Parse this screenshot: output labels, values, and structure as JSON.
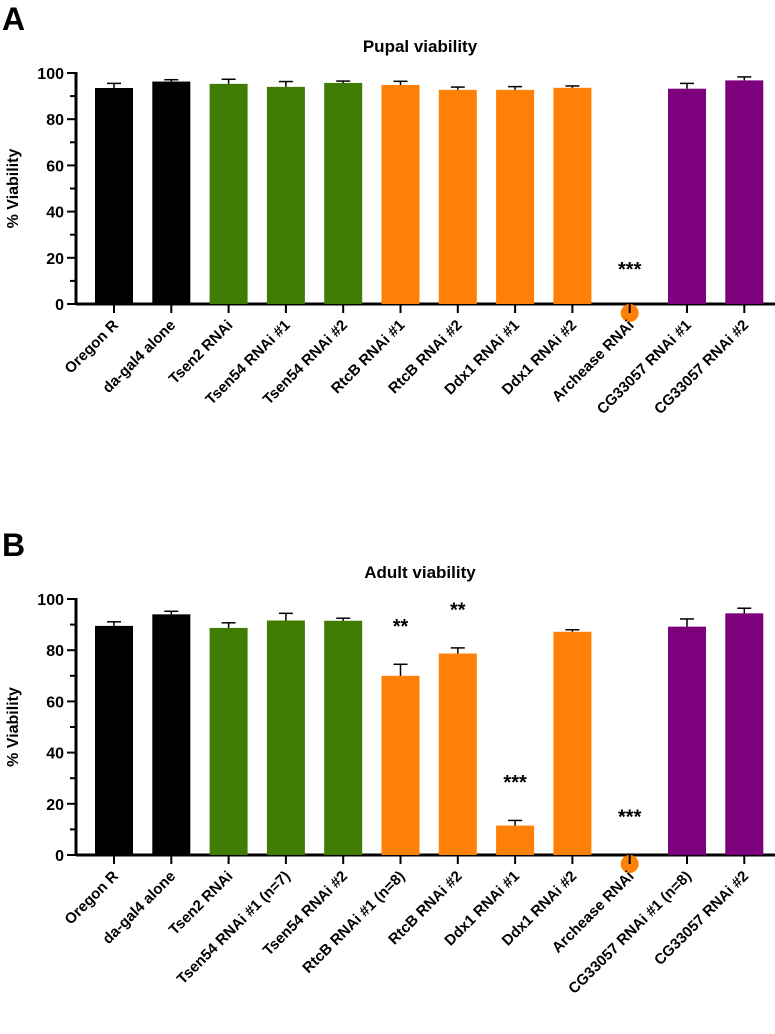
{
  "colors": {
    "control": "#000000",
    "tsen": "#417c02",
    "rtc": "#ff8008",
    "cg": "#7d007d"
  },
  "chart_data": [
    {
      "type": "bar",
      "panel_letter": "A",
      "title": "Pupal viability",
      "ylabel": "% Viability",
      "ylim": [
        0,
        100
      ],
      "yticks": [
        0,
        20,
        40,
        60,
        80,
        100
      ],
      "grid": false,
      "categories": [
        "Oregon R",
        "da-gal4 alone",
        "Tsen2 RNAi",
        "Tsen54 RNAi #1",
        "Tsen54 RNAi #2",
        "RtcB RNAi #1",
        "RtcB RNAi #2",
        "Ddx1 RNAi #1",
        "Ddx1 RNAi #2",
        "Archease RNAi",
        "CG33057 RNAi #1",
        "CG33057 RNAi #2"
      ],
      "values": [
        93.5,
        96.3,
        95.3,
        94,
        95.7,
        94.8,
        92.7,
        92.7,
        93.6,
        0,
        93.2,
        96.8
      ],
      "errors": [
        2,
        0.8,
        2,
        2.3,
        0.8,
        1.6,
        1.2,
        1.4,
        0.8,
        0,
        2.3,
        1.5
      ],
      "groups": [
        "control",
        "control",
        "tsen",
        "tsen",
        "tsen",
        "rtc",
        "rtc",
        "rtc",
        "rtc",
        "rtc",
        "cg",
        "cg"
      ],
      "significance": [
        "",
        "",
        "",
        "",
        "",
        "",
        "",
        "",
        "",
        "***",
        "",
        ""
      ],
      "dot_at_zero": [
        9
      ]
    },
    {
      "type": "bar",
      "panel_letter": "B",
      "title": "Adult viability",
      "ylabel": "% Viability",
      "ylim": [
        0,
        100
      ],
      "yticks": [
        0,
        20,
        40,
        60,
        80,
        100
      ],
      "grid": false,
      "categories": [
        "Oregon R",
        "da-gal4 alone",
        "Tsen2 RNAi",
        "Tsen54 RNAi #1 (n=7)",
        "Tsen54 RNAi #2",
        "RtcB RNAi #1 (n=8)",
        "RtcB RNAi #2",
        "Ddx1 RNAi #1",
        "Ddx1 RNAi #2",
        "Archease RNAi",
        "CG33057 RNAi #1 (n=8)",
        "CG33057 RNAi #2"
      ],
      "values": [
        89.5,
        94,
        88.7,
        91.6,
        91.5,
        70,
        78.7,
        11.5,
        87.2,
        0,
        89.2,
        94.4
      ],
      "errors": [
        1.6,
        1.2,
        2,
        2.8,
        1,
        4.5,
        2.2,
        2,
        0.8,
        0,
        3,
        2
      ],
      "groups": [
        "control",
        "control",
        "tsen",
        "tsen",
        "tsen",
        "rtc",
        "rtc",
        "rtc",
        "rtc",
        "rtc",
        "cg",
        "cg"
      ],
      "significance": [
        "",
        "",
        "",
        "",
        "",
        "**",
        "**",
        "***",
        "",
        "***",
        "",
        ""
      ],
      "dot_at_zero": [
        9
      ]
    }
  ]
}
